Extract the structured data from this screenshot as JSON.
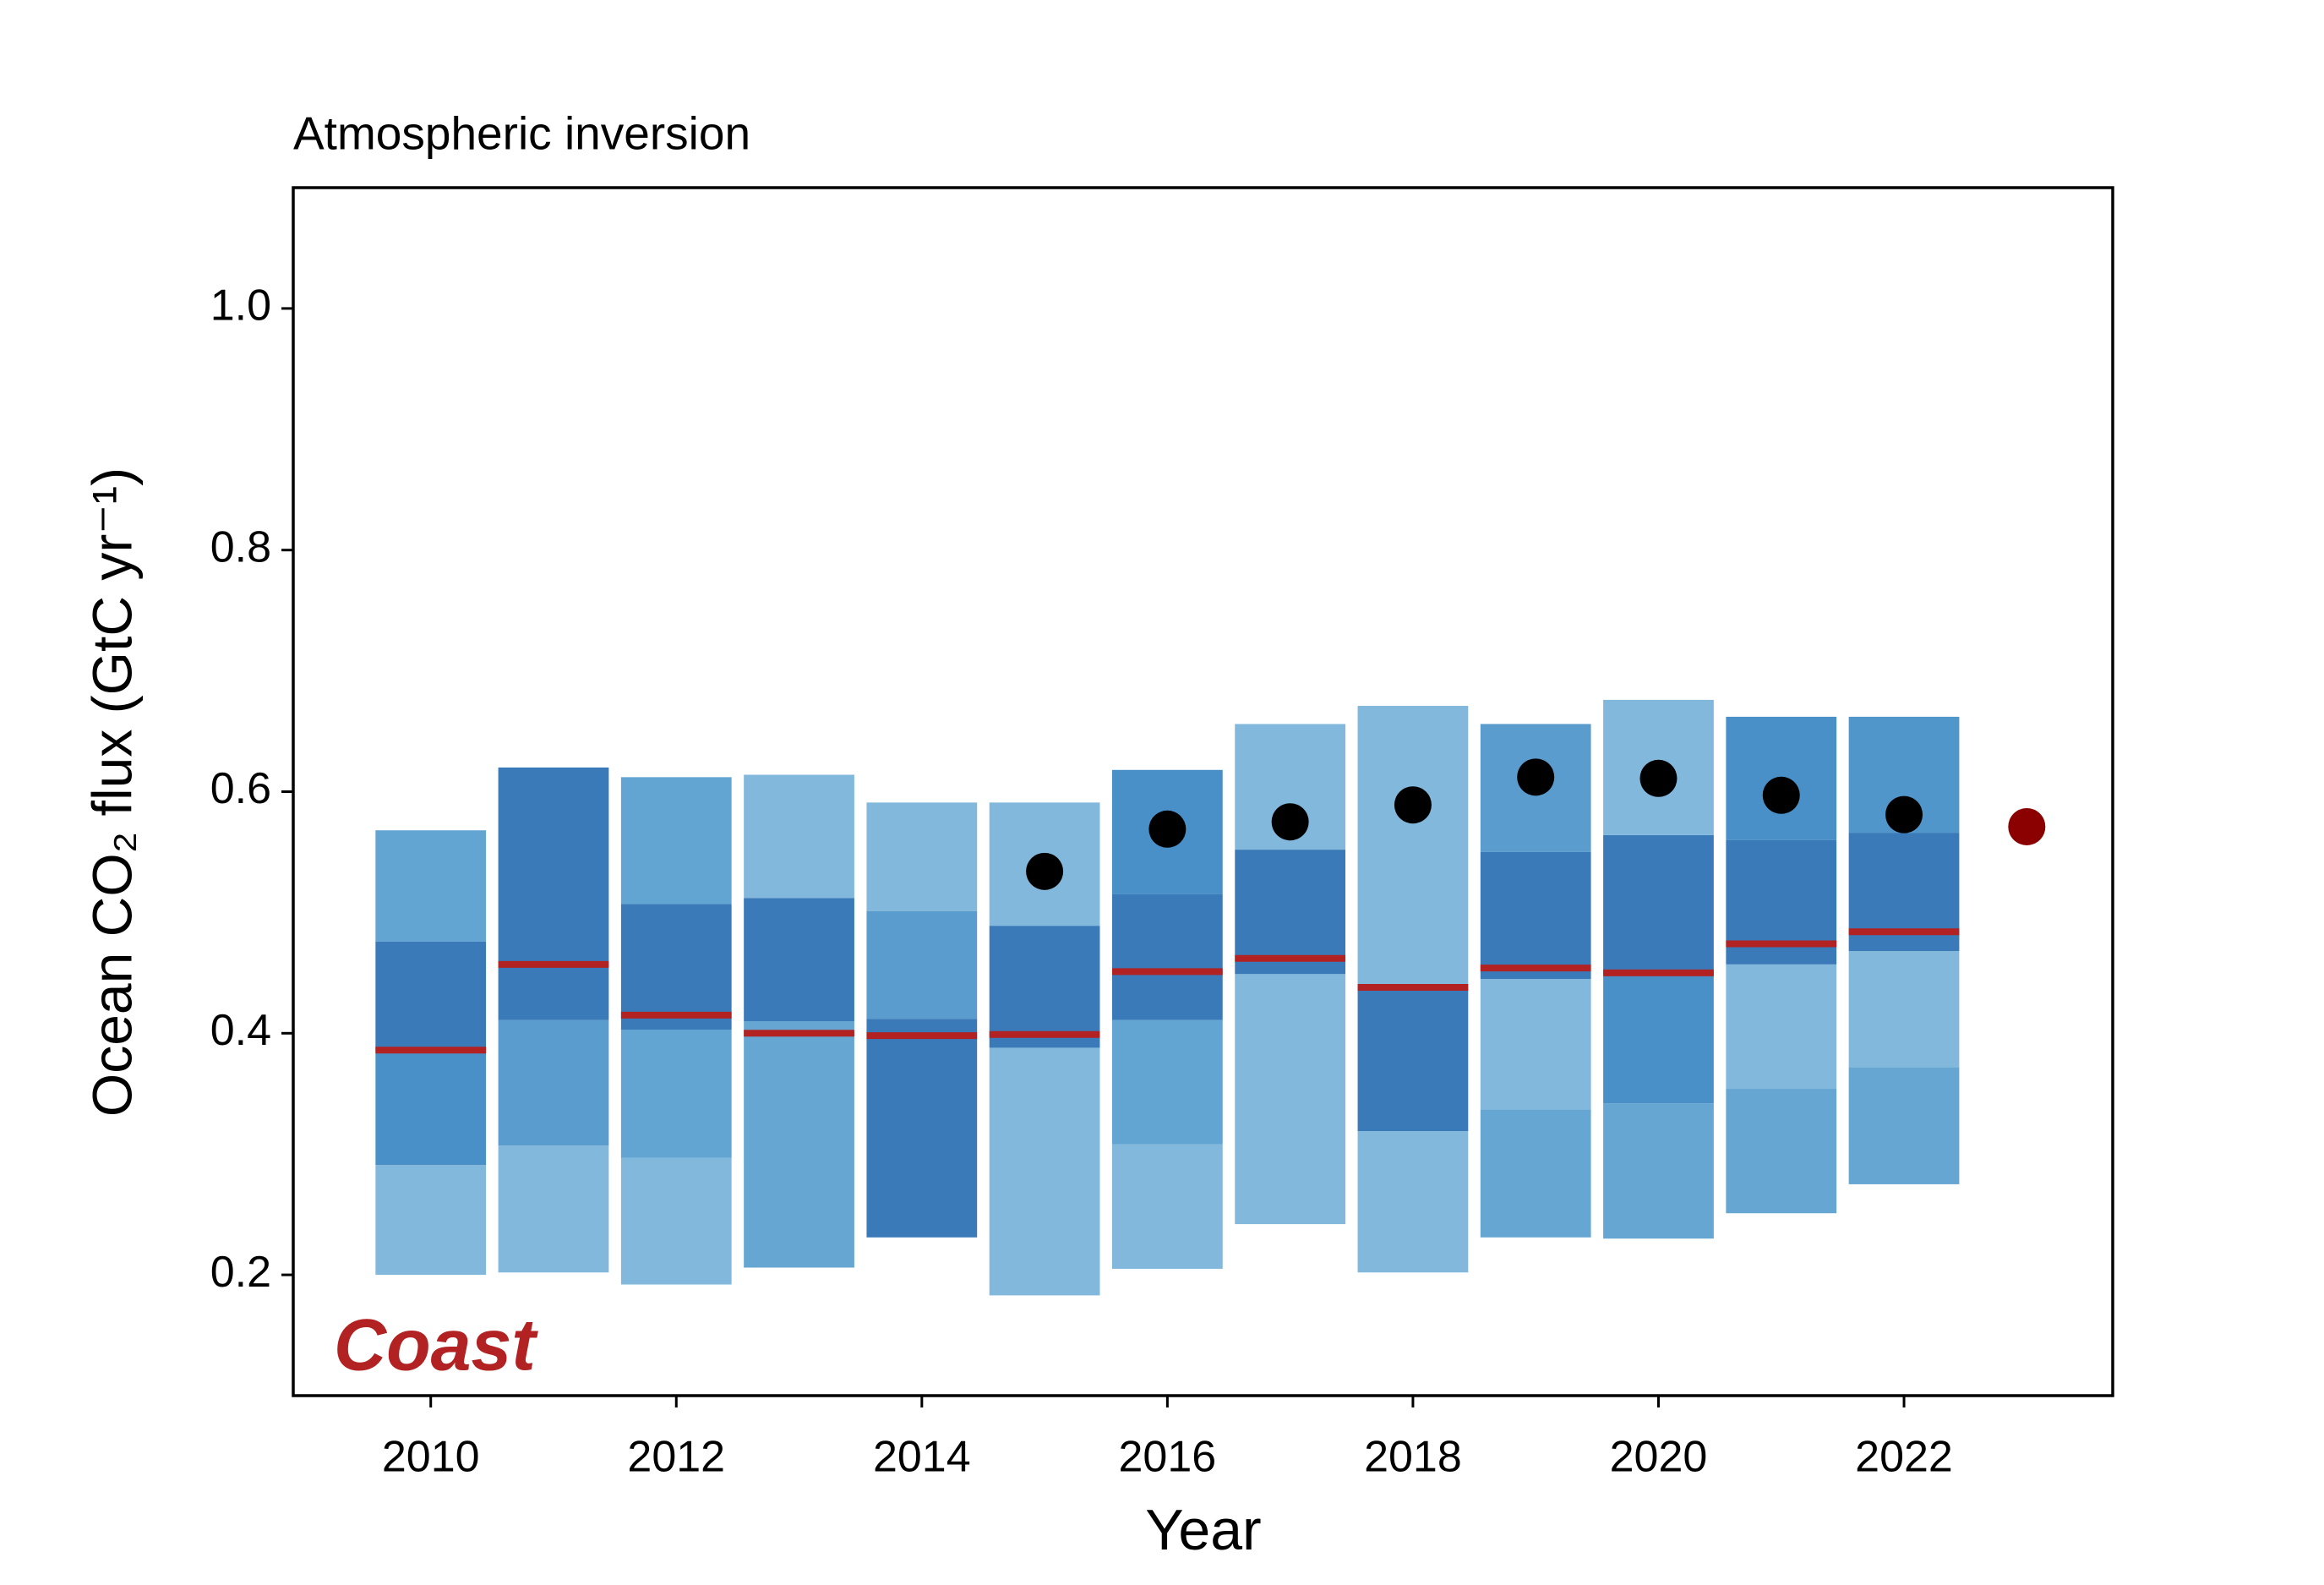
{
  "chart_data": {
    "type": "range-bar",
    "title": "Atmospheric inversion",
    "x_label": "Year",
    "y_label": "Ocean CO₂ flux (GtC yr⁻¹)",
    "annotation": "Coast",
    "annotation_color": "#b22222",
    "xlim": [
      2008.88,
      2023.7
    ],
    "xticks": [
      2010,
      2012,
      2014,
      2016,
      2018,
      2020,
      2022
    ],
    "ylim": [
      0.1,
      1.1
    ],
    "yticks": [
      0.2,
      0.4,
      0.6,
      {
        "value": 1,
        "label": "1.0"
      },
      0.8
    ],
    "x": [
      2010,
      2011,
      2012,
      2013,
      2014,
      2015,
      2016,
      2017,
      2018,
      2019,
      2020,
      2021,
      2022
    ],
    "bands": [
      {
        "edges": [
          0.2,
          0.291,
          0.386,
          0.476,
          0.568
        ],
        "colors": [
          "#82b8dc",
          "#4a90c8",
          "#3a7ab8",
          "#62a4d2"
        ]
      },
      {
        "edges": [
          0.202,
          0.307,
          0.411,
          0.62
        ],
        "colors": [
          "#82b8dc",
          "#5a9ccd",
          "#3a7ab8"
        ]
      },
      {
        "edges": [
          0.192,
          0.297,
          0.403,
          0.507,
          0.612
        ],
        "colors": [
          "#82b8dc",
          "#62a4d2",
          "#3a7ab8",
          "#62a4d2"
        ]
      },
      {
        "edges": [
          0.206,
          0.41,
          0.512,
          0.614
        ],
        "colors": [
          "#66a6d2",
          "#3a7ab8",
          "#82b8dc"
        ]
      },
      {
        "edges": [
          0.231,
          0.412,
          0.501,
          0.591
        ],
        "colors": [
          "#3a7ab8",
          "#5a9ccd",
          "#82b8dc"
        ]
      },
      {
        "edges": [
          0.183,
          0.388,
          0.489,
          0.591
        ],
        "colors": [
          "#82b8dc",
          "#3a7ab8",
          "#82b8dc"
        ]
      },
      {
        "edges": [
          0.205,
          0.308,
          0.411,
          0.515,
          0.618
        ],
        "colors": [
          "#82b8dc",
          "#62a4d2",
          "#3a7ab8",
          "#4a90c8"
        ]
      },
      {
        "edges": [
          0.242,
          0.449,
          0.552,
          0.656
        ],
        "colors": [
          "#82b8dc",
          "#3a7ab8",
          "#82b8dc"
        ]
      },
      {
        "edges": [
          0.202,
          0.319,
          0.438,
          0.671
        ],
        "colors": [
          "#82b8dc",
          "#3a7ab8",
          "#82b8dc"
        ]
      },
      {
        "edges": [
          0.231,
          0.337,
          0.445,
          0.55,
          0.656
        ],
        "colors": [
          "#66a6d2",
          "#82b8dc",
          "#3a7ab8",
          "#5a9ccd"
        ]
      },
      {
        "edges": [
          0.23,
          0.342,
          0.448,
          0.564,
          0.676
        ],
        "colors": [
          "#66a6d2",
          "#4a90c8",
          "#3a7ab8",
          "#82b8dc"
        ]
      },
      {
        "edges": [
          0.251,
          0.354,
          0.457,
          0.56,
          0.662
        ],
        "colors": [
          "#66a6d2",
          "#82b8dc",
          "#3a7ab8",
          "#4a90c8"
        ]
      },
      {
        "edges": [
          0.275,
          0.372,
          0.468,
          0.566,
          0.662
        ],
        "colors": [
          "#66a6d2",
          "#82b8dc",
          "#3a7ab8",
          "#5096ca"
        ]
      }
    ],
    "medians": [
      0.386,
      0.457,
      0.415,
      0.4,
      0.398,
      0.399,
      0.451,
      0.462,
      0.438,
      0.454,
      0.45,
      0.474,
      0.484
    ],
    "median_color": "#b22222",
    "observations": {
      "x": [
        2015,
        2016,
        2017,
        2018,
        2019,
        2020,
        2021,
        2022
      ],
      "values": [
        0.534,
        0.569,
        0.575,
        0.589,
        0.612,
        0.611,
        0.597,
        0.581
      ],
      "color": "#000000"
    },
    "highlight": {
      "x": [
        2023
      ],
      "values": [
        0.571
      ],
      "color": "#8b0000"
    }
  }
}
